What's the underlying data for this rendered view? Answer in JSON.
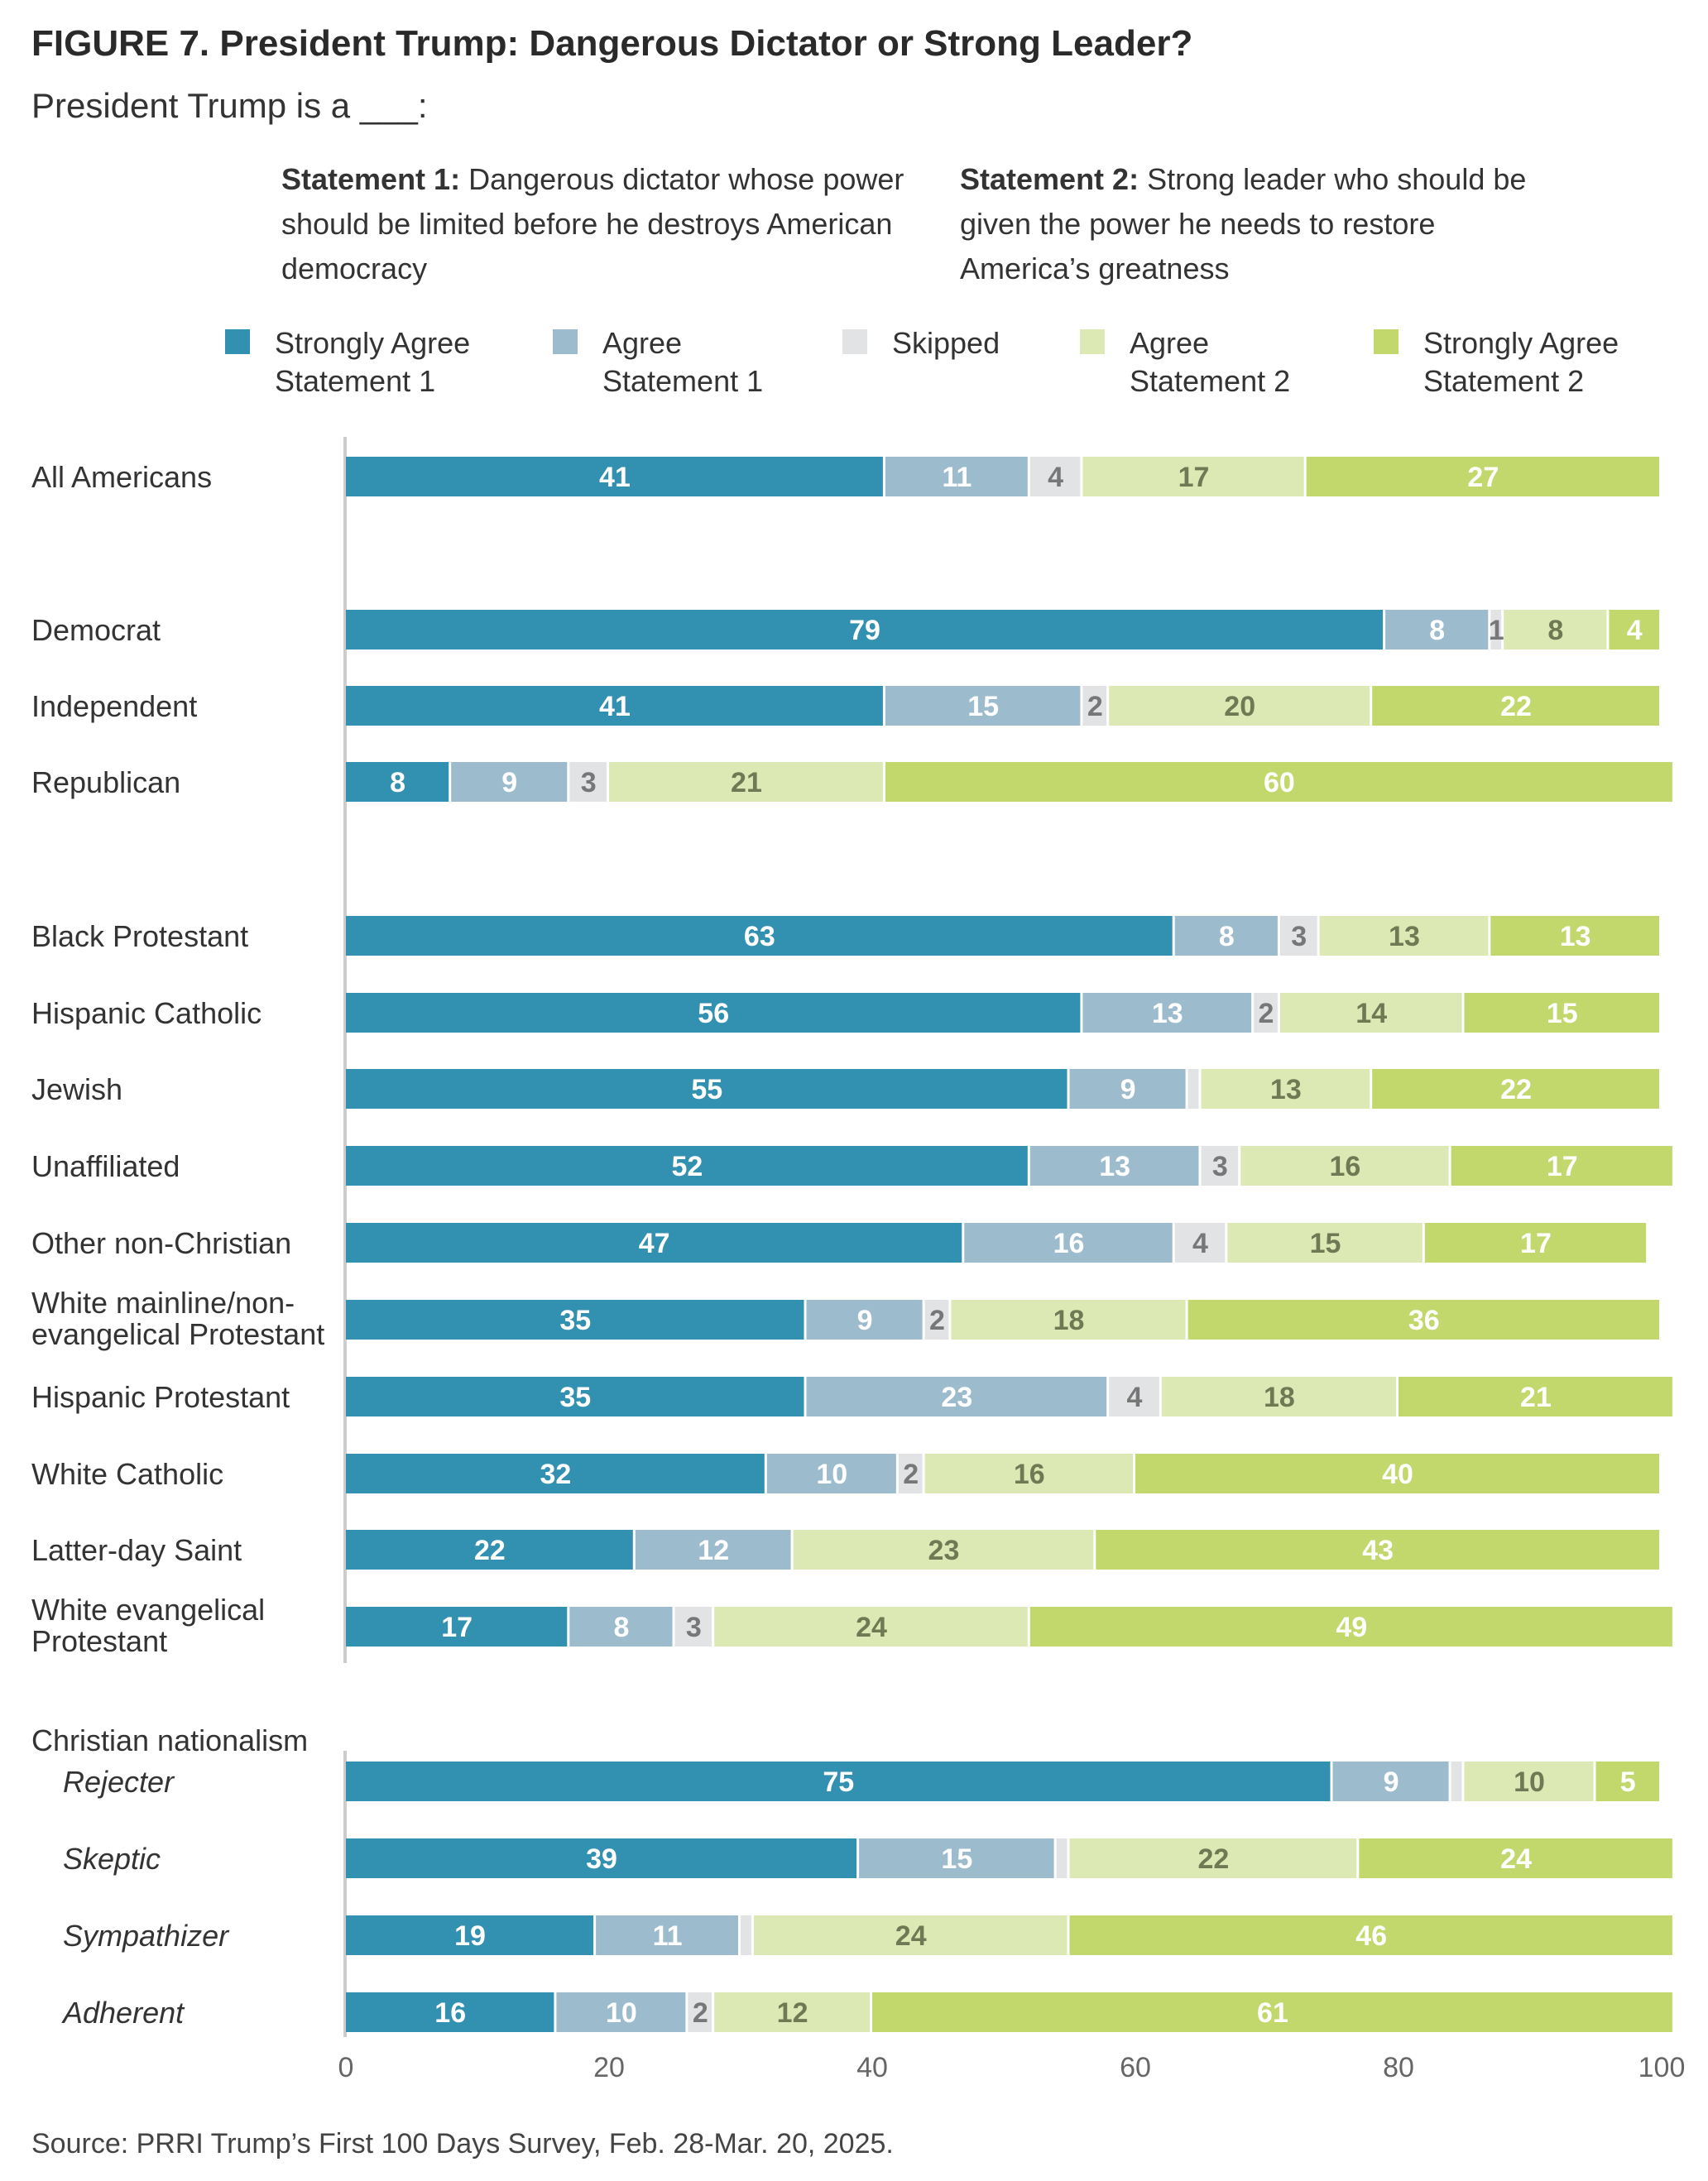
{
  "figure": {
    "title": "FIGURE 7.  President Trump: Dangerous Dictator or Strong Leader?",
    "subtitle": "President Trump is a ___:",
    "statement1_label": "Statement 1:",
    "statement1_text": "Dangerous dictator whose power should be limited before he destroys American democracy",
    "statement2_label": "Statement 2:",
    "statement2_text": "Strong leader who should be given the power he needs to restore America’s greatness",
    "source": "Source: PRRI Trump’s First 100 Days Survey, Feb. 28-Mar. 20, 2025."
  },
  "chart_data": {
    "type": "bar",
    "orientation": "horizontal",
    "stacked": true,
    "xlim": [
      0,
      100
    ],
    "xticks": [
      0,
      20,
      40,
      60,
      80,
      100
    ],
    "legend_position": "top",
    "colors": {
      "strong1": "#3290b0",
      "agree1": "#9cbcce",
      "skipped": "#e2e3e5",
      "agree2": "#dde9b4",
      "strong2": "#c3d86c"
    },
    "text_colors": {
      "strong1": "#ffffff",
      "agree1": "#ffffff",
      "skipped": "#777777",
      "agree2": "#6f7a55",
      "strong2": "#ffffff"
    },
    "series": [
      {
        "key": "strong1",
        "name": "Strongly Agree Statement 1"
      },
      {
        "key": "agree1",
        "name": "Agree Statement 1"
      },
      {
        "key": "skipped",
        "name": "Skipped"
      },
      {
        "key": "agree2",
        "name": "Agree Statement 2"
      },
      {
        "key": "strong2",
        "name": "Strongly Agree Statement 2"
      }
    ],
    "section_headings": [
      {
        "label": "Christian nationalism"
      }
    ],
    "categories": [
      {
        "label": "All Americans",
        "values": [
          41,
          11,
          4,
          17,
          27
        ],
        "labels": [
          "41",
          "11",
          "4",
          "17",
          "27"
        ]
      },
      {
        "label": "Democrat",
        "values": [
          79,
          8,
          1,
          8,
          4
        ],
        "labels": [
          "79",
          "8",
          "1",
          "8",
          "4"
        ]
      },
      {
        "label": "Independent",
        "values": [
          41,
          15,
          2,
          20,
          22
        ],
        "labels": [
          "41",
          "15",
          "2",
          "20",
          "22"
        ]
      },
      {
        "label": "Republican",
        "values": [
          8,
          9,
          3,
          21,
          60
        ],
        "labels": [
          "8",
          "9",
          "3",
          "21",
          "60"
        ]
      },
      {
        "label": "Black Protestant",
        "values": [
          63,
          8,
          3,
          13,
          13
        ],
        "labels": [
          "63",
          "8",
          "3",
          "13",
          "13"
        ]
      },
      {
        "label": "Hispanic Catholic",
        "values": [
          56,
          13,
          2,
          14,
          15
        ],
        "labels": [
          "56",
          "13",
          "2",
          "14",
          "15"
        ]
      },
      {
        "label": "Jewish",
        "values": [
          55,
          9,
          1,
          13,
          22
        ],
        "labels": [
          "55",
          "9",
          "",
          "13",
          "22"
        ]
      },
      {
        "label": "Unaffiliated",
        "values": [
          52,
          13,
          3,
          16,
          17
        ],
        "labels": [
          "52",
          "13",
          "3",
          "16",
          "17"
        ]
      },
      {
        "label": "Other non-Christian",
        "values": [
          47,
          16,
          4,
          15,
          17
        ],
        "labels": [
          "47",
          "16",
          "4",
          "15",
          "17"
        ]
      },
      {
        "label": "White mainline/non-evangelical Protestant",
        "lines": [
          "White mainline/non-",
          "evangelical Protestant"
        ],
        "values": [
          35,
          9,
          2,
          18,
          36
        ],
        "labels": [
          "35",
          "9",
          "2",
          "18",
          "36"
        ]
      },
      {
        "label": "Hispanic Protestant",
        "values": [
          35,
          23,
          4,
          18,
          21
        ],
        "labels": [
          "35",
          "23",
          "4",
          "18",
          "21"
        ]
      },
      {
        "label": "White Catholic",
        "values": [
          32,
          10,
          2,
          16,
          40
        ],
        "labels": [
          "32",
          "10",
          "2",
          "16",
          "40"
        ]
      },
      {
        "label": "Latter-day Saint",
        "values": [
          22,
          12,
          0,
          23,
          43
        ],
        "labels": [
          "22",
          "12",
          "",
          "23",
          "43"
        ]
      },
      {
        "label": "White evangelical Protestant",
        "lines": [
          "White evangelical",
          "Protestant"
        ],
        "values": [
          17,
          8,
          3,
          24,
          49
        ],
        "labels": [
          "17",
          "8",
          "3",
          "24",
          "49"
        ]
      },
      {
        "label": "Rejecter",
        "italic": true,
        "values": [
          75,
          9,
          1,
          10,
          5
        ],
        "labels": [
          "75",
          "9",
          "",
          "10",
          "5"
        ]
      },
      {
        "label": "Skeptic",
        "italic": true,
        "values": [
          39,
          15,
          1,
          22,
          24
        ],
        "labels": [
          "39",
          "15",
          "",
          "22",
          "24"
        ]
      },
      {
        "label": "Sympathizer",
        "italic": true,
        "values": [
          19,
          11,
          1,
          24,
          46
        ],
        "labels": [
          "19",
          "11",
          "",
          "24",
          "46"
        ]
      },
      {
        "label": "Adherent",
        "italic": true,
        "values": [
          16,
          10,
          2,
          12,
          61
        ],
        "labels": [
          "16",
          "10",
          "2",
          "12",
          "61"
        ]
      }
    ]
  }
}
